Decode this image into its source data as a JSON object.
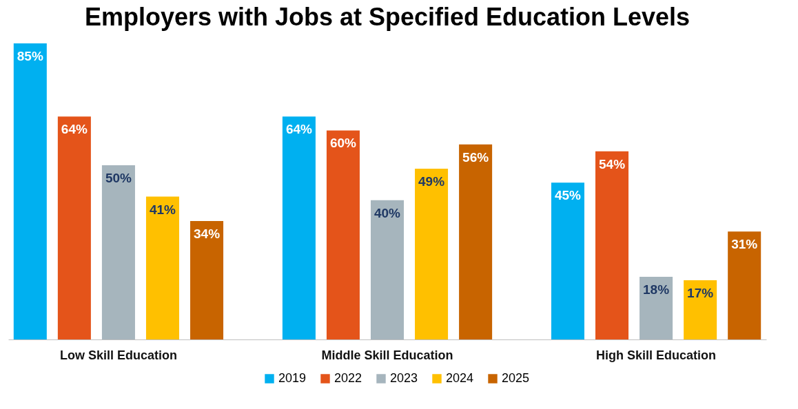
{
  "chart_data": {
    "type": "bar",
    "title": "Employers with Jobs at Specified Education Levels",
    "categories": [
      "Low Skill Education",
      "Middle Skill Education",
      "High Skill Education"
    ],
    "series": [
      {
        "name": "2019",
        "color": "#00b0f0",
        "values": [
          85,
          64,
          45
        ],
        "value_labels": [
          "85%",
          "64%",
          "45%"
        ]
      },
      {
        "name": "2022",
        "color": "#e4541a",
        "values": [
          64,
          60,
          54
        ],
        "value_labels": [
          "64%",
          "60%",
          "54%"
        ]
      },
      {
        "name": "2023",
        "color": "#a6b5bd",
        "values": [
          50,
          40,
          18
        ],
        "value_labels": [
          "50%",
          "40%",
          "18%"
        ]
      },
      {
        "name": "2024",
        "color": "#ffc000",
        "values": [
          41,
          49,
          17
        ],
        "value_labels": [
          "41%",
          "49%",
          "17%"
        ]
      },
      {
        "name": "2025",
        "color": "#c86400",
        "values": [
          34,
          56,
          31
        ],
        "value_labels": [
          "34%",
          "56%",
          "31%"
        ]
      }
    ],
    "legend": "bottom"
  }
}
